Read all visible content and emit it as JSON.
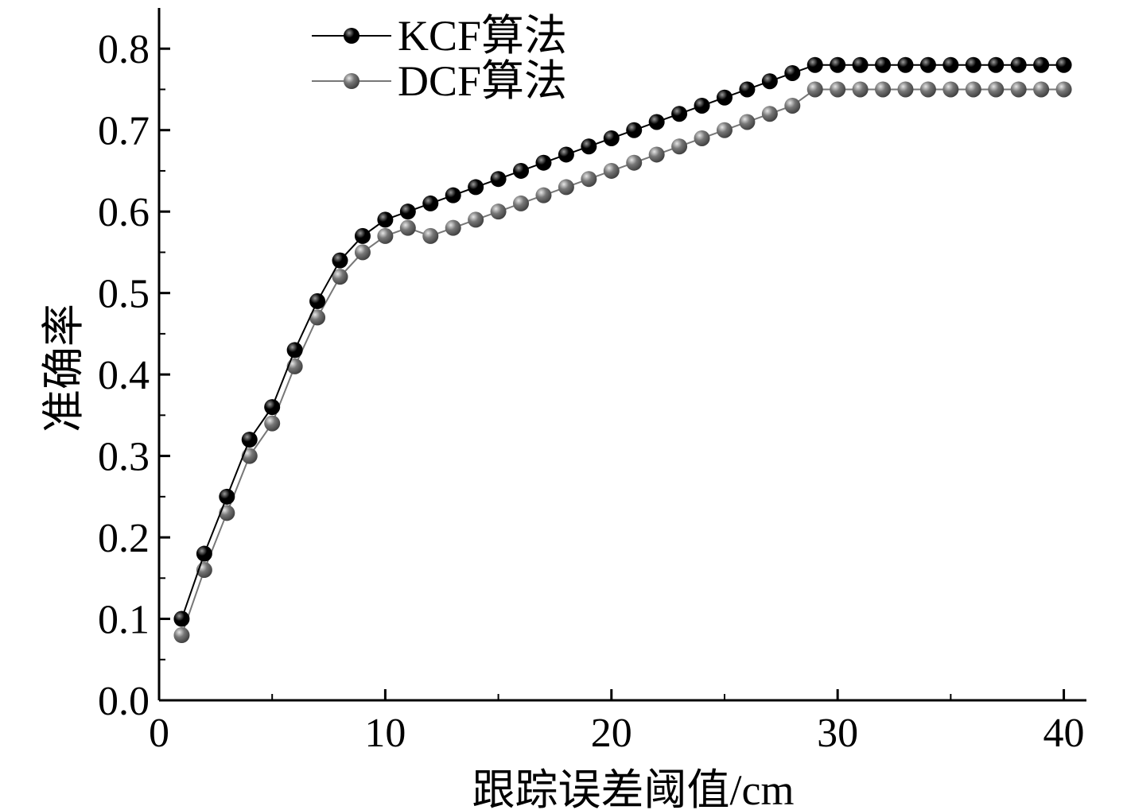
{
  "chart_data": {
    "type": "line",
    "title": "",
    "xlabel": "跟踪误差阈值/cm",
    "ylabel": "准确率",
    "xlim": [
      0,
      41
    ],
    "ylim": [
      0,
      0.85
    ],
    "xticks": [
      0,
      10,
      20,
      30,
      40
    ],
    "xtick_labels": [
      "0",
      "10",
      "20",
      "30",
      "40"
    ],
    "yticks": [
      0.0,
      0.1,
      0.2,
      0.3,
      0.4,
      0.5,
      0.6,
      0.7,
      0.8
    ],
    "ytick_labels": [
      "0.0",
      "0.1",
      "0.2",
      "0.3",
      "0.4",
      "0.5",
      "0.6",
      "0.7",
      "0.8"
    ],
    "x": [
      1,
      2,
      3,
      4,
      5,
      6,
      7,
      8,
      9,
      10,
      11,
      12,
      13,
      14,
      15,
      16,
      17,
      18,
      19,
      20,
      21,
      22,
      23,
      24,
      25,
      26,
      27,
      28,
      29,
      30,
      31,
      32,
      33,
      34,
      35,
      36,
      37,
      38,
      39,
      40
    ],
    "series": [
      {
        "name": "KCF算法",
        "color": "#000000",
        "values": [
          0.1,
          0.18,
          0.25,
          0.32,
          0.36,
          0.43,
          0.49,
          0.54,
          0.57,
          0.59,
          0.6,
          0.61,
          0.62,
          0.63,
          0.64,
          0.65,
          0.66,
          0.67,
          0.68,
          0.69,
          0.7,
          0.71,
          0.72,
          0.73,
          0.74,
          0.75,
          0.76,
          0.77,
          0.78,
          0.78,
          0.78,
          0.78,
          0.78,
          0.78,
          0.78,
          0.78,
          0.78,
          0.78,
          0.78,
          0.78
        ]
      },
      {
        "name": "DCF算法",
        "color": "#777777",
        "values": [
          0.08,
          0.16,
          0.23,
          0.3,
          0.34,
          0.41,
          0.47,
          0.52,
          0.55,
          0.57,
          0.58,
          0.57,
          0.58,
          0.59,
          0.6,
          0.61,
          0.62,
          0.63,
          0.64,
          0.65,
          0.66,
          0.67,
          0.68,
          0.69,
          0.7,
          0.71,
          0.72,
          0.73,
          0.75,
          0.75,
          0.75,
          0.75,
          0.75,
          0.75,
          0.75,
          0.75,
          0.75,
          0.75,
          0.75,
          0.75
        ]
      }
    ],
    "legend_position": "top-left",
    "grid": false
  }
}
